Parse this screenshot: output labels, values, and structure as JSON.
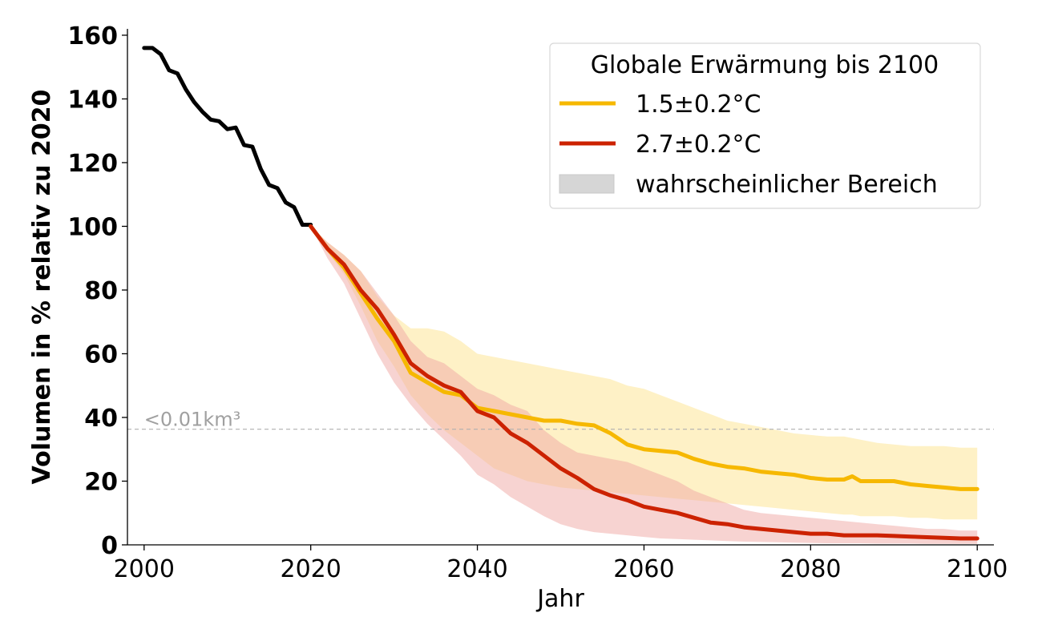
{
  "chart_data": {
    "type": "line",
    "xlabel": "Jahr",
    "ylabel": "Volumen in % relativ zu 2020",
    "xlim": [
      1998,
      2102
    ],
    "ylim": [
      0,
      162
    ],
    "xticks": [
      2000,
      2020,
      2040,
      2060,
      2080,
      2100
    ],
    "yticks": [
      0,
      20,
      40,
      60,
      80,
      100,
      120,
      140,
      160
    ],
    "grid": false,
    "legend": {
      "title": "Globale Erwärmung bis 2100",
      "position": "top-right",
      "range_label": "wahrscheinlicher Bereich"
    },
    "threshold": {
      "y": 36.3,
      "label": "<0.01km³"
    },
    "colors": {
      "observed": "#000000",
      "low": "#f6b800",
      "low_band": "#fde9a8",
      "high": "#cc2200",
      "high_band": "#f0a8a4",
      "threshold": "#b0b0b0",
      "legend_band": "#d6d6d6"
    },
    "observed": {
      "x": [
        2000,
        2001,
        2002,
        2003,
        2004,
        2005,
        2006,
        2007,
        2008,
        2009,
        2010,
        2011,
        2012,
        2013,
        2014,
        2015,
        2016,
        2017,
        2018,
        2019,
        2020
      ],
      "y": [
        156,
        156,
        154,
        149,
        148,
        143,
        139,
        136,
        133.5,
        133,
        130.5,
        131,
        125.5,
        125,
        118,
        113,
        112,
        107.5,
        106,
        100.5,
        100.5
      ]
    },
    "series": [
      {
        "name": "1.5±0.2°C",
        "x": [
          2020,
          2022,
          2024,
          2026,
          2028,
          2030,
          2032,
          2034,
          2036,
          2038,
          2040,
          2042,
          2044,
          2046,
          2048,
          2050,
          2052,
          2054,
          2056,
          2058,
          2060,
          2062,
          2064,
          2066,
          2068,
          2070,
          2072,
          2074,
          2076,
          2078,
          2080,
          2082,
          2084,
          2085,
          2086,
          2088,
          2090,
          2092,
          2094,
          2096,
          2098,
          2100
        ],
        "y": [
          100,
          93,
          87,
          79,
          71,
          64,
          54,
          51,
          48,
          47,
          43,
          42,
          41,
          40,
          39,
          39,
          38,
          37.5,
          35,
          31.5,
          30,
          29.5,
          29,
          27,
          25.5,
          24.5,
          24,
          23,
          22.5,
          22,
          21,
          20.5,
          20.5,
          21.5,
          20,
          20,
          20,
          19,
          18.5,
          18,
          17.5,
          17.5
        ],
        "lower": [
          100,
          92,
          85,
          75,
          64,
          56,
          47,
          41,
          36,
          32,
          28,
          24,
          22,
          20,
          19,
          18,
          17.5,
          17,
          16.5,
          16,
          15.5,
          15,
          14.5,
          14,
          13.5,
          13,
          12.5,
          12,
          11.5,
          11,
          10.5,
          10,
          9.5,
          9.5,
          9,
          9,
          9,
          8.5,
          8.5,
          8,
          8,
          8
        ],
        "upper": [
          100,
          95,
          91,
          86,
          78,
          72,
          68,
          68,
          67,
          64,
          60,
          59,
          58,
          57,
          56,
          55,
          54,
          53,
          52,
          50,
          49,
          47,
          45,
          43,
          41,
          39,
          38,
          37,
          36,
          35,
          34.5,
          34,
          34,
          33.5,
          33,
          32,
          31.5,
          31,
          31,
          31,
          30.5,
          30.5
        ]
      },
      {
        "name": "2.7±0.2°C",
        "x": [
          2020,
          2022,
          2024,
          2026,
          2028,
          2030,
          2032,
          2034,
          2036,
          2038,
          2040,
          2042,
          2044,
          2046,
          2048,
          2050,
          2052,
          2054,
          2056,
          2058,
          2060,
          2062,
          2064,
          2066,
          2068,
          2070,
          2072,
          2074,
          2076,
          2078,
          2080,
          2082,
          2084,
          2086,
          2088,
          2090,
          2092,
          2094,
          2096,
          2098,
          2100
        ],
        "y": [
          100,
          93,
          88,
          80,
          74,
          66,
          57,
          53,
          50,
          48,
          42,
          40,
          35,
          32,
          28,
          24,
          21,
          17.5,
          15.5,
          14,
          12,
          11,
          10,
          8.5,
          7,
          6.5,
          5.5,
          5,
          4.5,
          4,
          3.5,
          3.5,
          3,
          3,
          3,
          2.8,
          2.6,
          2.4,
          2.2,
          2,
          2
        ],
        "lower": [
          100,
          90,
          82,
          71,
          60,
          51,
          44,
          38,
          33,
          28,
          22,
          19,
          15,
          12,
          9,
          6.5,
          5,
          4,
          3.5,
          3,
          2.5,
          2,
          1.8,
          1.6,
          1.4,
          1.2,
          1,
          0.9,
          0.8,
          0.7,
          0.6,
          0.5,
          0.5,
          0.5,
          0.4,
          0.4,
          0.4,
          0.3,
          0.3,
          0.3,
          0.3
        ],
        "upper": [
          100,
          95,
          91,
          86,
          79,
          72,
          64,
          59,
          57,
          53,
          49,
          47,
          44,
          42,
          36,
          32,
          29,
          28,
          27,
          26,
          24,
          22,
          20,
          17,
          15,
          13,
          11,
          10,
          9.5,
          9,
          8.5,
          8,
          7.5,
          7,
          6.5,
          6,
          5.5,
          5,
          5,
          4.5,
          4.5
        ]
      }
    ]
  }
}
